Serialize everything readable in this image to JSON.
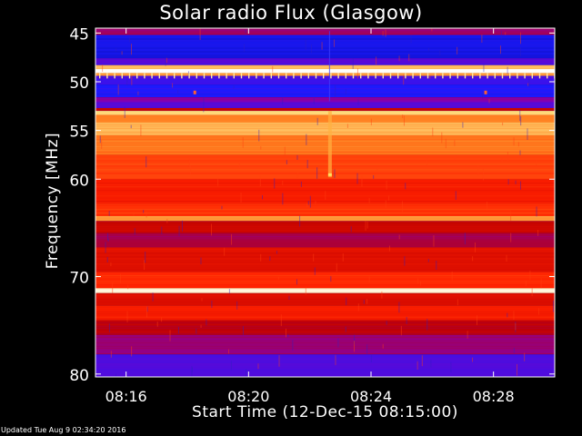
{
  "chart_data": {
    "type": "heatmap",
    "title": "Solar radio Flux (Glasgow)",
    "xlabel": "Start Time (12-Dec-15 08:15:00)",
    "ylabel": "Frequency [MHz]",
    "x_ticks": [
      "08:16",
      "08:20",
      "08:24",
      "08:28"
    ],
    "x_tick_minutes": [
      1,
      5,
      9,
      13
    ],
    "xlim_minutes": [
      0,
      15
    ],
    "y_ticks": [
      45,
      50,
      55,
      60,
      70,
      80
    ],
    "ylim": [
      44.5,
      80.3
    ],
    "colormap": [
      "#000066",
      "#1a1aff",
      "#8000c0",
      "#c00000",
      "#ff2000",
      "#ff8020",
      "#ffe080",
      "#ffffff"
    ],
    "bands": [
      {
        "from": 44.5,
        "to": 45.2,
        "level": 0.35
      },
      {
        "from": 45.2,
        "to": 47.6,
        "level": 0.12
      },
      {
        "from": 47.6,
        "to": 48.3,
        "level": 0.22
      },
      {
        "from": 48.3,
        "to": 48.7,
        "level": 0.8
      },
      {
        "from": 48.7,
        "to": 49.1,
        "level": 1.0
      },
      {
        "from": 49.1,
        "to": 49.4,
        "level": 0.75
      },
      {
        "from": 49.4,
        "to": 50.3,
        "level": 0.2
      },
      {
        "from": 50.3,
        "to": 51.6,
        "level": 0.15
      },
      {
        "from": 51.6,
        "to": 52.1,
        "level": 0.3
      },
      {
        "from": 52.1,
        "to": 52.7,
        "level": 0.22
      },
      {
        "from": 52.7,
        "to": 53.0,
        "level": 0.45
      },
      {
        "from": 53.0,
        "to": 53.4,
        "level": 0.85
      },
      {
        "from": 53.4,
        "to": 54.2,
        "level": 0.72
      },
      {
        "from": 54.2,
        "to": 55.5,
        "level": 0.8
      },
      {
        "from": 55.5,
        "to": 57.5,
        "level": 0.7
      },
      {
        "from": 57.5,
        "to": 60.0,
        "level": 0.62
      },
      {
        "from": 60.0,
        "to": 62.5,
        "level": 0.55
      },
      {
        "from": 62.5,
        "to": 63.8,
        "level": 0.6
      },
      {
        "from": 63.8,
        "to": 64.3,
        "level": 0.75
      },
      {
        "from": 64.3,
        "to": 65.5,
        "level": 0.45
      },
      {
        "from": 65.5,
        "to": 67.0,
        "level": 0.38
      },
      {
        "from": 67.0,
        "to": 69.5,
        "level": 0.5
      },
      {
        "from": 69.5,
        "to": 71.2,
        "level": 0.58
      },
      {
        "from": 71.2,
        "to": 71.7,
        "level": 0.95
      },
      {
        "from": 71.7,
        "to": 73.0,
        "level": 0.5
      },
      {
        "from": 73.0,
        "to": 74.5,
        "level": 0.55
      },
      {
        "from": 74.5,
        "to": 76.0,
        "level": 0.42
      },
      {
        "from": 76.0,
        "to": 78.0,
        "level": 0.34
      },
      {
        "from": 78.0,
        "to": 80.3,
        "level": 0.22
      }
    ]
  },
  "footer": "Updated Tue Aug  9 02:34:20 2016"
}
